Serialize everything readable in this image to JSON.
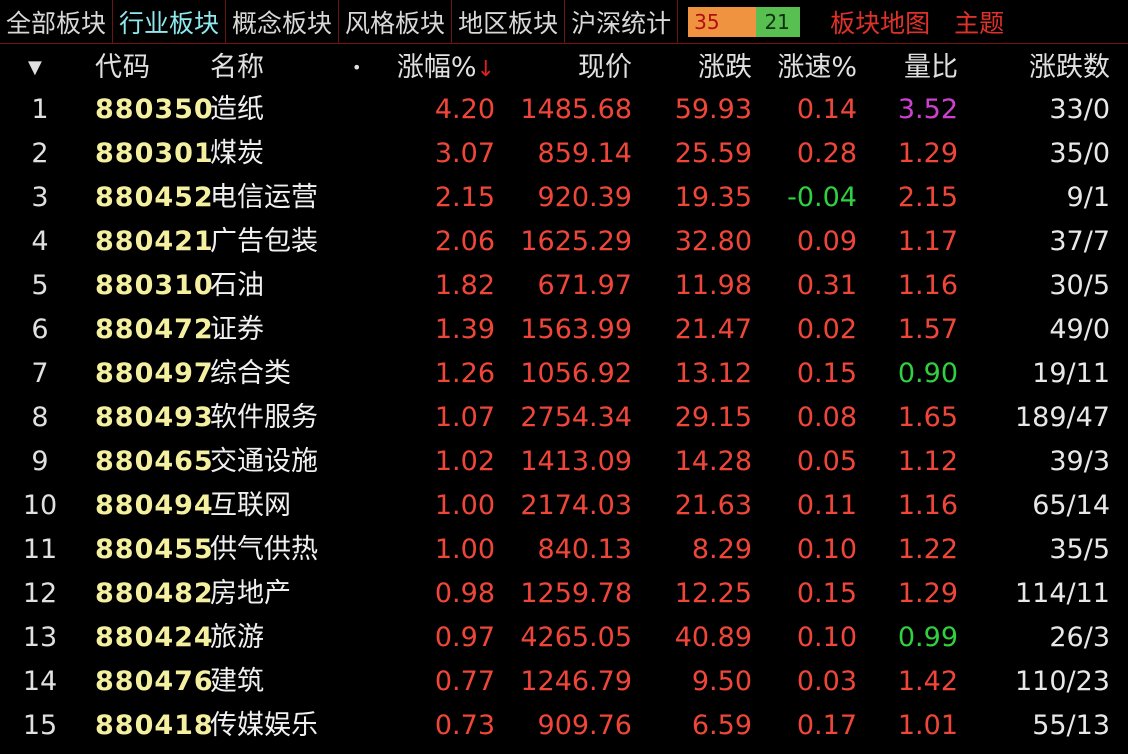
{
  "tabs": [
    "全部板块",
    "行业板块",
    "概念板块",
    "风格板块",
    "地区板块",
    "沪深统计"
  ],
  "active_tab": 1,
  "counter": {
    "up": "35",
    "down": "21",
    "up_color": "#ef9340",
    "down_color": "#58c050"
  },
  "links": [
    "板块地图",
    "主题"
  ],
  "header": {
    "sort_icon": "▼",
    "code": "代码",
    "name": "名称",
    "dot": "•",
    "change_pct": "涨幅%",
    "sort_arrow": "↓",
    "price": "现价",
    "change": "涨跌",
    "speed": "涨速%",
    "vol_ratio": "量比",
    "updown": "涨跌数"
  },
  "rows": [
    {
      "idx": "1",
      "code": "880350",
      "name": "造纸",
      "pct": "4.20",
      "price": "1485.68",
      "chg": "59.93",
      "speed": "0.14",
      "vr": "3.52",
      "ud": "33/0",
      "speed_c": "red",
      "vr_c": "mag"
    },
    {
      "idx": "2",
      "code": "880301",
      "name": "煤炭",
      "pct": "3.07",
      "price": "859.14",
      "chg": "25.59",
      "speed": "0.28",
      "vr": "1.29",
      "ud": "35/0",
      "speed_c": "red",
      "vr_c": "red"
    },
    {
      "idx": "3",
      "code": "880452",
      "name": "电信运营",
      "pct": "2.15",
      "price": "920.39",
      "chg": "19.35",
      "speed": "-0.04",
      "vr": "2.15",
      "ud": "9/1",
      "speed_c": "grn",
      "vr_c": "red"
    },
    {
      "idx": "4",
      "code": "880421",
      "name": "广告包装",
      "pct": "2.06",
      "price": "1625.29",
      "chg": "32.80",
      "speed": "0.09",
      "vr": "1.17",
      "ud": "37/7",
      "speed_c": "red",
      "vr_c": "red"
    },
    {
      "idx": "5",
      "code": "880310",
      "name": "石油",
      "pct": "1.82",
      "price": "671.97",
      "chg": "11.98",
      "speed": "0.31",
      "vr": "1.16",
      "ud": "30/5",
      "speed_c": "red",
      "vr_c": "red"
    },
    {
      "idx": "6",
      "code": "880472",
      "name": "证券",
      "pct": "1.39",
      "price": "1563.99",
      "chg": "21.47",
      "speed": "0.02",
      "vr": "1.57",
      "ud": "49/0",
      "speed_c": "red",
      "vr_c": "red"
    },
    {
      "idx": "7",
      "code": "880497",
      "name": "综合类",
      "pct": "1.26",
      "price": "1056.92",
      "chg": "13.12",
      "speed": "0.15",
      "vr": "0.90",
      "ud": "19/11",
      "speed_c": "red",
      "vr_c": "grn"
    },
    {
      "idx": "8",
      "code": "880493",
      "name": "软件服务",
      "pct": "1.07",
      "price": "2754.34",
      "chg": "29.15",
      "speed": "0.08",
      "vr": "1.65",
      "ud": "189/47",
      "speed_c": "red",
      "vr_c": "red"
    },
    {
      "idx": "9",
      "code": "880465",
      "name": "交通设施",
      "pct": "1.02",
      "price": "1413.09",
      "chg": "14.28",
      "speed": "0.05",
      "vr": "1.12",
      "ud": "39/3",
      "speed_c": "red",
      "vr_c": "red"
    },
    {
      "idx": "10",
      "code": "880494",
      "name": "互联网",
      "pct": "1.00",
      "price": "2174.03",
      "chg": "21.63",
      "speed": "0.11",
      "vr": "1.16",
      "ud": "65/14",
      "speed_c": "red",
      "vr_c": "red"
    },
    {
      "idx": "11",
      "code": "880455",
      "name": "供气供热",
      "pct": "1.00",
      "price": "840.13",
      "chg": "8.29",
      "speed": "0.10",
      "vr": "1.22",
      "ud": "35/5",
      "speed_c": "red",
      "vr_c": "red"
    },
    {
      "idx": "12",
      "code": "880482",
      "name": "房地产",
      "pct": "0.98",
      "price": "1259.78",
      "chg": "12.25",
      "speed": "0.15",
      "vr": "1.29",
      "ud": "114/11",
      "speed_c": "red",
      "vr_c": "red"
    },
    {
      "idx": "13",
      "code": "880424",
      "name": "旅游",
      "pct": "0.97",
      "price": "4265.05",
      "chg": "40.89",
      "speed": "0.10",
      "vr": "0.99",
      "ud": "26/3",
      "speed_c": "red",
      "vr_c": "grn"
    },
    {
      "idx": "14",
      "code": "880476",
      "name": "建筑",
      "pct": "0.77",
      "price": "1246.79",
      "chg": "9.50",
      "speed": "0.03",
      "vr": "1.42",
      "ud": "110/23",
      "speed_c": "red",
      "vr_c": "red"
    },
    {
      "idx": "15",
      "code": "880418",
      "name": "传媒娱乐",
      "pct": "0.73",
      "price": "909.76",
      "chg": "6.59",
      "speed": "0.17",
      "vr": "1.01",
      "ud": "55/13",
      "speed_c": "red",
      "vr_c": "red"
    }
  ]
}
